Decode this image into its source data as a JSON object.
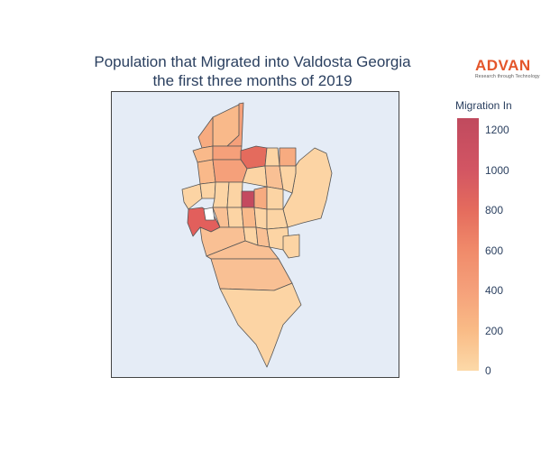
{
  "title": {
    "line1": "Population that Migrated into Valdosta Georgia",
    "line2": "the first three months of 2019"
  },
  "logo": {
    "name": "ADVAN",
    "tagline": "Research through Technology"
  },
  "colorbar": {
    "title": "Migration In",
    "min": 0,
    "max": 1260,
    "ticks": [
      0,
      200,
      400,
      600,
      800,
      1000,
      1200
    ],
    "colorscale": [
      "#fcd9a8",
      "#f9bb86",
      "#f5a07a",
      "#f08a6a",
      "#e46b5d",
      "#d25563",
      "#c04a5e"
    ]
  },
  "map": {
    "background": "#e5ecf6",
    "border_color": "#555555"
  }
}
